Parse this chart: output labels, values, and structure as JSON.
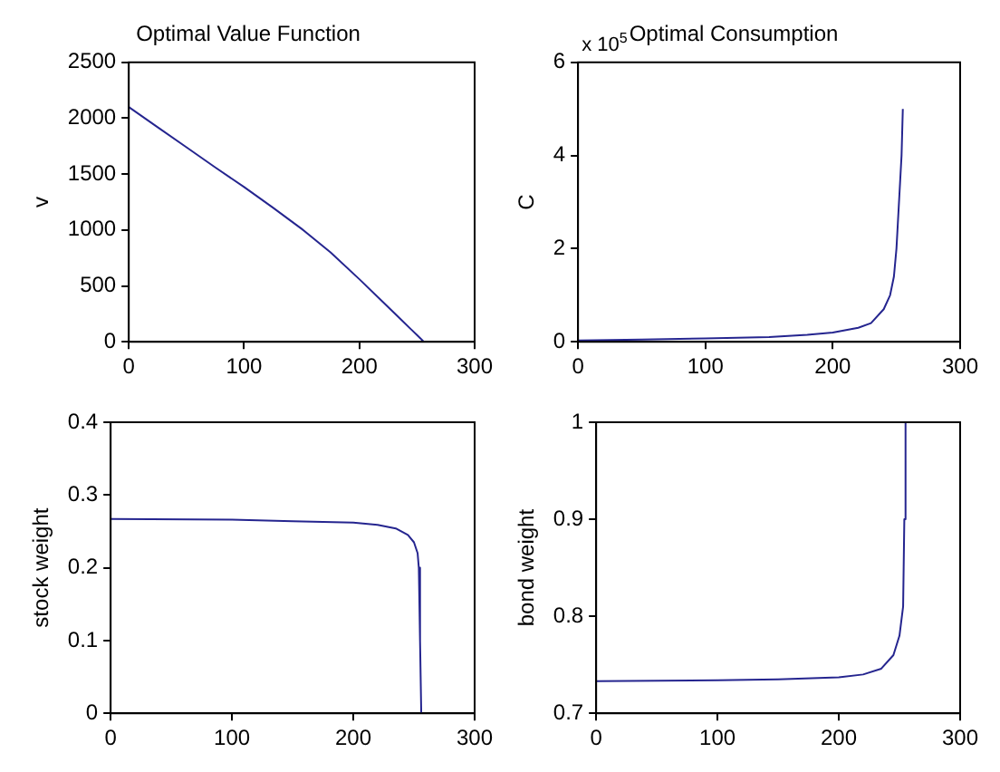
{
  "chart_data": [
    {
      "type": "line",
      "title": "Optimal Value Function",
      "ylabel": "v",
      "color": "#25258f",
      "marker": "none",
      "grid": false,
      "x": [
        0,
        25,
        50,
        75,
        100,
        125,
        150,
        175,
        200,
        220,
        235,
        245,
        250,
        254,
        256
      ],
      "values": [
        2100,
        1920,
        1740,
        1560,
        1385,
        1200,
        1010,
        800,
        560,
        360,
        210,
        110,
        60,
        20,
        0
      ],
      "xlim": [
        0,
        300
      ],
      "xticks": [
        0,
        100,
        200,
        300
      ],
      "ylim": [
        0,
        2500
      ],
      "yticks": [
        0,
        500,
        1000,
        1500,
        2000,
        2500
      ]
    },
    {
      "type": "line",
      "title": "Optimal Consumption",
      "ylabel": "C",
      "color": "#25258f",
      "marker": "none",
      "grid": false,
      "annotations": [
        "x 10$^{5}$"
      ],
      "x": [
        0,
        50,
        100,
        150,
        180,
        200,
        220,
        230,
        240,
        245,
        248,
        250,
        252,
        254,
        255
      ],
      "values": [
        0.03,
        0.05,
        0.07,
        0.1,
        0.15,
        0.2,
        0.3,
        0.4,
        0.7,
        1.0,
        1.4,
        2.0,
        3.0,
        4.0,
        5.0
      ],
      "xlim": [
        0,
        300
      ],
      "xticks": [
        0,
        100,
        200,
        300
      ],
      "ylim": [
        0,
        6
      ],
      "yticks": [
        0,
        2,
        4,
        6
      ]
    },
    {
      "type": "line",
      "ylabel": "stock weight",
      "color": "#25258f",
      "marker": "none",
      "grid": false,
      "x": [
        0,
        100,
        150,
        200,
        220,
        235,
        245,
        250,
        253,
        254,
        255,
        256
      ],
      "values": [
        0.267,
        0.266,
        0.264,
        0.262,
        0.259,
        0.254,
        0.245,
        0.235,
        0.22,
        0.2,
        0.1,
        0
      ],
      "xlim": [
        0,
        300
      ],
      "xticks": [
        0,
        100,
        200,
        300
      ],
      "ylim": [
        0,
        0.4
      ],
      "yticks": [
        0,
        0.1,
        0.2,
        0.3,
        0.4
      ]
    },
    {
      "type": "line",
      "ylabel": "bond weight",
      "color": "#25258f",
      "marker": "none",
      "grid": false,
      "x": [
        0,
        100,
        150,
        200,
        220,
        235,
        245,
        250,
        253,
        254,
        255
      ],
      "values": [
        0.733,
        0.734,
        0.735,
        0.737,
        0.74,
        0.746,
        0.76,
        0.78,
        0.81,
        0.9,
        1.0
      ],
      "xlim": [
        0,
        300
      ],
      "xticks": [
        0,
        100,
        200,
        300
      ],
      "ylim": [
        0.7,
        1
      ],
      "yticks": [
        0.7,
        0.8,
        0.9,
        1
      ]
    }
  ]
}
